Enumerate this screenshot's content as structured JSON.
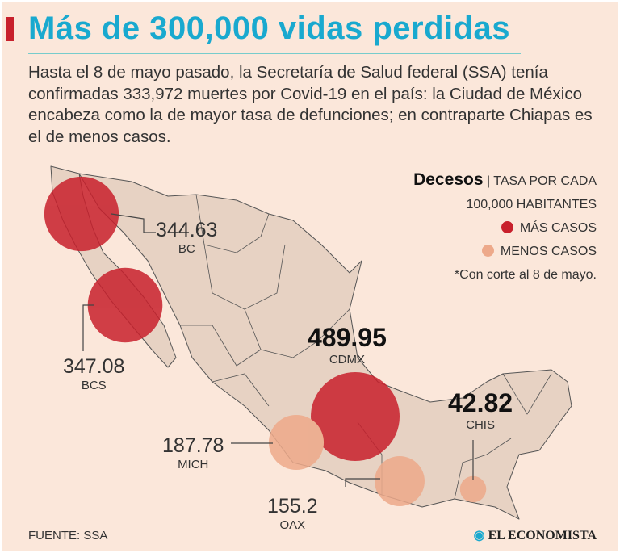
{
  "title": "Más de 300,000 vidas perdidas",
  "intro": "Hasta el 8 de mayo pasado, la Secretaría de Salud federal (SSA) tenía confirmadas 333,972 muertes por Covid-19 en el país: la Ciudad de México encabeza como la de mayor tasa de defunciones; en contraparte Chiapas es el de menos casos.",
  "legend": {
    "heading": "Decesos",
    "separator": "|",
    "line1": "TASA POR CADA",
    "line2": "100,000 HABITANTES",
    "more": "MÁS CASOS",
    "less": "MENOS CASOS",
    "note": "*Con corte al 8 de mayo."
  },
  "colors": {
    "more": "#c8202c",
    "less": "#eda98a",
    "title": "#19a9cf",
    "land": "#e7d2c3"
  },
  "states": [
    {
      "code": "BC",
      "value": "344.63",
      "category": "more"
    },
    {
      "code": "BCS",
      "value": "347.08",
      "category": "more"
    },
    {
      "code": "CDMX",
      "value": "489.95",
      "category": "more"
    },
    {
      "code": "MICH",
      "value": "187.78",
      "category": "less"
    },
    {
      "code": "OAX",
      "value": "155.2",
      "category": "less"
    },
    {
      "code": "CHIS",
      "value": "42.82",
      "category": "less"
    }
  ],
  "source": "FUENTE: SSA",
  "brand": "EL ECONOMISTA"
}
